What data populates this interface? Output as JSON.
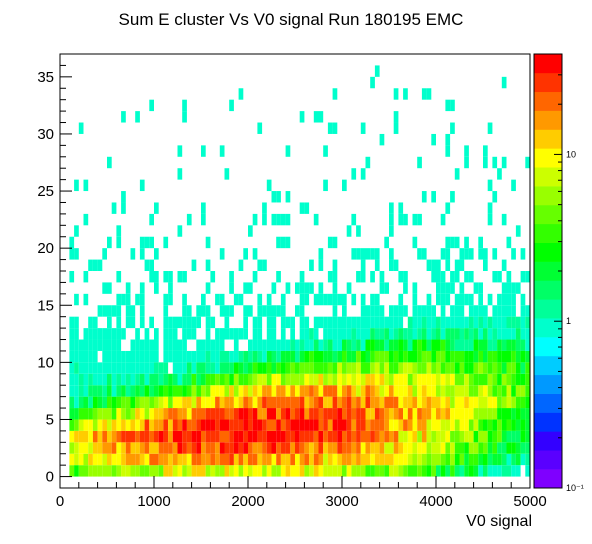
{
  "chart_data": {
    "type": "heatmap",
    "title": "Sum E cluster Vs V0 signal Run 180195 EMC",
    "xlabel": "V0 signal",
    "ylabel": "",
    "xlim": [
      0,
      5000
    ],
    "ylim": [
      -1,
      37
    ],
    "x_ticks": [
      0,
      1000,
      2000,
      3000,
      4000,
      5000
    ],
    "x_tick_labels": [
      "0",
      "1000",
      "2000",
      "3000",
      "4000",
      "5000"
    ],
    "y_ticks": [
      0,
      5,
      10,
      15,
      20,
      25,
      30,
      35
    ],
    "y_tick_labels": [
      "0",
      "5",
      "10",
      "15",
      "20",
      "25",
      "30",
      "35"
    ],
    "z_scale": "log",
    "z_range": [
      0.1,
      40
    ],
    "z_ticks": [
      0.1,
      1,
      10
    ],
    "z_tick_labels": [
      "10⁻¹",
      "1",
      "10"
    ],
    "x_bin_width": 50,
    "y_bin_width": 1,
    "density_model": {
      "description": "approximate counts per (V0 signal, Sum E) bin read from colour",
      "peak_count": 32,
      "peak_x_range": [
        1000,
        3000
      ],
      "peak_y": 4,
      "ridge_y_at_x0": 2.5,
      "ridge_y_at_x5000": 6,
      "low_count_tail_up_to_y": 36
    },
    "palette_colors": [
      "#7f00ff",
      "#5a00ff",
      "#3300ff",
      "#0033ff",
      "#0066ff",
      "#0099ff",
      "#00ccff",
      "#00ffff",
      "#00ffcc",
      "#00ff99",
      "#00ff66",
      "#00ff33",
      "#00ff00",
      "#33ff00",
      "#66ff00",
      "#99ff00",
      "#ccff00",
      "#ffff00",
      "#ffcc00",
      "#ff9900",
      "#ff6600",
      "#ff3300",
      "#ff0000"
    ]
  }
}
